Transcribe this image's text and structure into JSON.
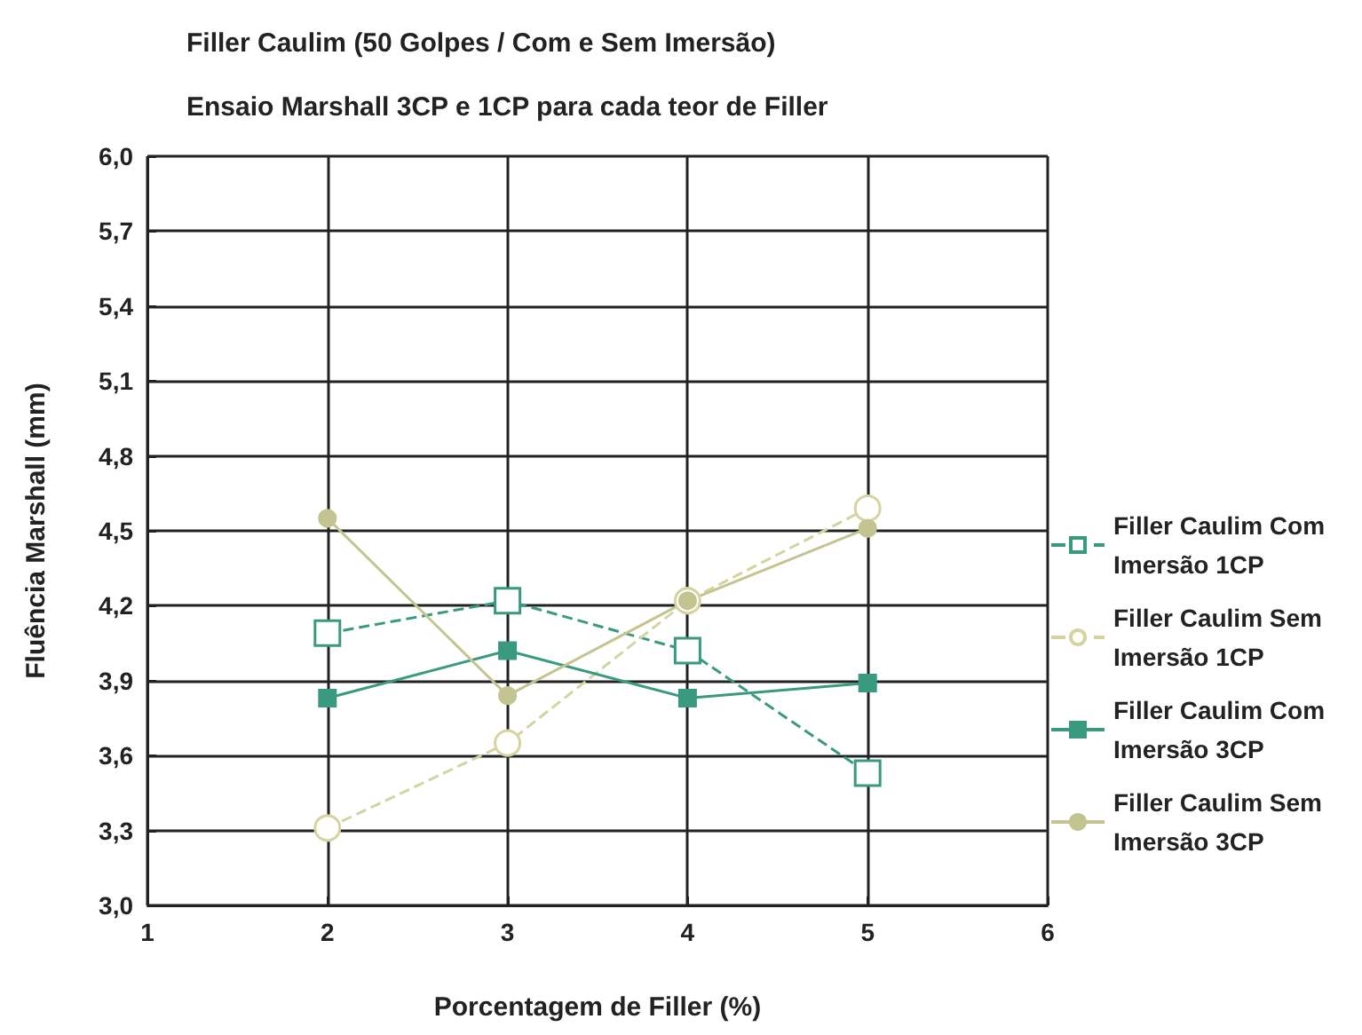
{
  "chart_data": {
    "type": "line",
    "title": "Filler Caulim (50 Golpes / Com e Sem Imersão)",
    "subtitle": "Ensaio Marshall 3CP e 1CP para cada teor de Filler",
    "xlabel": "Porcentagem de Filler (%)",
    "ylabel": "Fluência Marshall (mm)",
    "x": [
      2,
      3,
      4,
      5
    ],
    "series": [
      {
        "name": "Filler Caulim Com Imersão 1CP",
        "color": "#3a9a80",
        "values": [
          4.09,
          4.22,
          4.02,
          3.53
        ],
        "marker": "square",
        "line_style": "dashed"
      },
      {
        "name": "Filler Caulim Sem Imersão 1CP",
        "color": "#d4d4a0",
        "values": [
          3.31,
          3.65,
          4.22,
          4.59
        ],
        "marker": "circle",
        "line_style": "dashed"
      },
      {
        "name": "Filler Caulim Com Imersão 3CP",
        "color": "#3a9a80",
        "values": [
          3.83,
          4.02,
          3.83,
          3.89
        ],
        "marker": "square",
        "line_style": "solid"
      },
      {
        "name": "Filler Caulim Sem Imersão 3CP",
        "color": "#c4c490",
        "values": [
          4.55,
          3.84,
          4.22,
          4.51
        ],
        "marker": "circle",
        "line_style": "solid"
      }
    ],
    "xlim": [
      1,
      6
    ],
    "xticks": [
      1,
      2,
      3,
      4,
      5,
      6
    ],
    "ylim": [
      3,
      6
    ],
    "yticks": [
      {
        "value": 3,
        "label": "3,0"
      },
      {
        "value": 3.3,
        "label": "3,3"
      },
      {
        "value": 3.6,
        "label": "3,6"
      },
      {
        "value": 3.9,
        "label": "3,9"
      },
      {
        "value": 4.2,
        "label": "4,2"
      },
      {
        "value": 4.5,
        "label": "4,5"
      },
      {
        "value": 4.8,
        "label": "4,8"
      },
      {
        "value": 5.1,
        "label": "5,1"
      },
      {
        "value": 5.4,
        "label": "5,4"
      },
      {
        "value": 5.7,
        "label": "5,7"
      },
      {
        "value": 6,
        "label": "6,0"
      }
    ],
    "grid": true,
    "legend": "right"
  }
}
